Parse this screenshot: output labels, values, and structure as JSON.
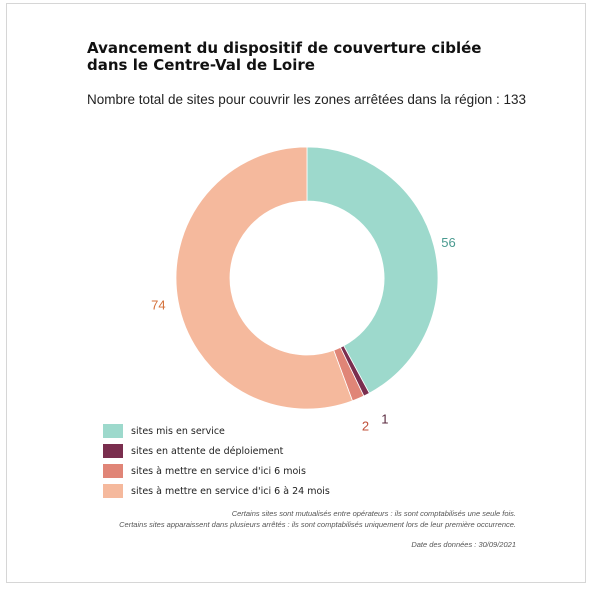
{
  "chart_data": {
    "type": "pie",
    "title": "Avancement du dispositif de couverture ciblée dans le Centre-Val de Loire",
    "subtitle": "Nombre total de sites pour couvrir les zones arrêtées dans la région : 133",
    "categories": [
      "sites mis en service",
      "sites en attente de déploiement",
      "sites à mettre en service d'ici 6 mois",
      "sites à mettre en service d'ici 6 à 24 mois"
    ],
    "values": [
      56,
      1,
      2,
      74
    ],
    "colors": [
      "#9dd9cc",
      "#7a2e4e",
      "#e08577",
      "#f5b99d"
    ],
    "label_colors": [
      "#4a9a90",
      "#5a2a3e",
      "#c0503a",
      "#d4703a"
    ],
    "legend_position": "bottom-left"
  },
  "notes": [
    "Certains sites sont mutualisés entre opérateurs : ils sont comptabilisés une seule fois.",
    "Certains sites apparaissent dans plusieurs arrêtés : ils sont comptabilisés uniquement lors de leur première occurrence."
  ],
  "date_label": "Date des données : 30/09/2021"
}
